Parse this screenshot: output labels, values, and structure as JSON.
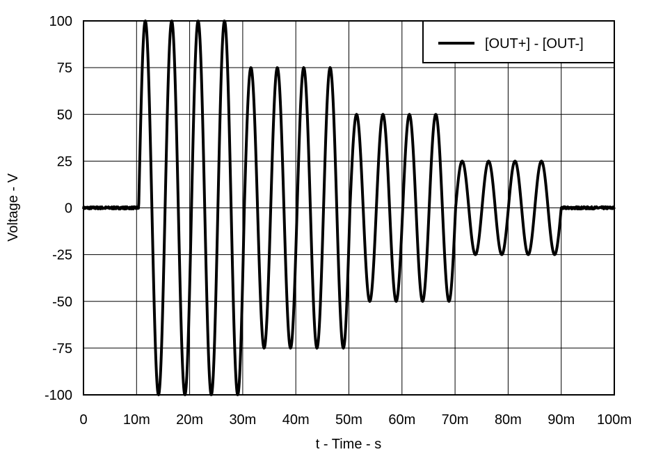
{
  "chart_data": {
    "type": "line",
    "xlabel": "t - Time - s",
    "ylabel": "Voltage - V",
    "xlim": [
      0,
      0.1
    ],
    "ylim": [
      -100,
      100
    ],
    "x_ticks": [
      0,
      0.01,
      0.02,
      0.03,
      0.04,
      0.05,
      0.06,
      0.07,
      0.08,
      0.09,
      0.1
    ],
    "x_tick_labels": [
      "0",
      "10m",
      "20m",
      "30m",
      "40m",
      "50m",
      "60m",
      "70m",
      "80m",
      "90m",
      "100m"
    ],
    "y_ticks": [
      100,
      75,
      50,
      25,
      0,
      -25,
      -50,
      -75,
      -100
    ],
    "y_tick_labels": [
      "100",
      "75",
      "50",
      "25",
      "0",
      "-25",
      "-50",
      "-75",
      "-100"
    ],
    "grid": true,
    "legend_position": "top-right",
    "series": [
      {
        "name": "[OUT+] - [OUT-]",
        "color": "#000000",
        "description_segments": [
          {
            "t_start": 0,
            "t_end": 0.0104,
            "amplitude": 0,
            "frequency": 201
          },
          {
            "t_start": 0.0104,
            "t_end": 0.0303,
            "amplitude": 100,
            "frequency": 201
          },
          {
            "t_start": 0.0303,
            "t_end": 0.0502,
            "amplitude": 75,
            "frequency": 201
          },
          {
            "t_start": 0.0502,
            "t_end": 0.0701,
            "amplitude": 50,
            "frequency": 201
          },
          {
            "t_start": 0.0701,
            "t_end": 0.09,
            "amplitude": 25,
            "frequency": 201
          },
          {
            "t_start": 0.09,
            "t_end": 0.1,
            "amplitude": 0,
            "frequency": 201
          }
        ]
      }
    ]
  }
}
